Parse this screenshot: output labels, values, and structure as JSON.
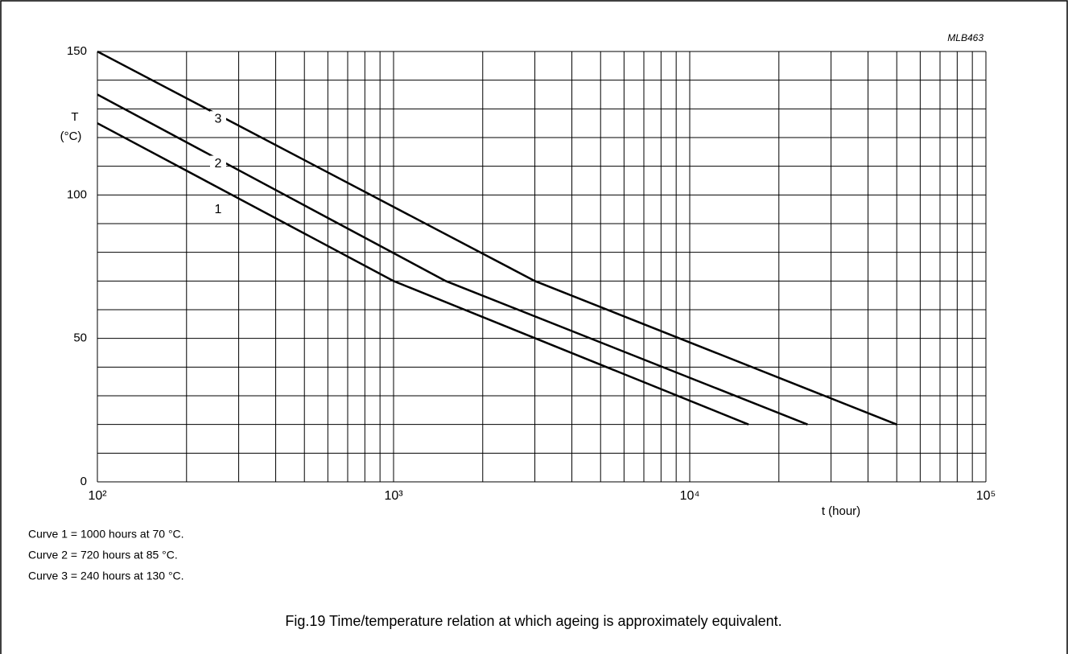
{
  "chart_data": {
    "type": "line",
    "code": "MLB463",
    "ylabel_symbol": "T",
    "ylabel_unit": "(°C)",
    "xlabel": "t (hour)",
    "xlog": true,
    "xlim": [
      100,
      100000
    ],
    "ylim": [
      0,
      150
    ],
    "xticks": [
      {
        "value": 100,
        "label": "10²"
      },
      {
        "value": 1000,
        "label": "10³"
      },
      {
        "value": 10000,
        "label": "10⁴"
      },
      {
        "value": 100000,
        "label": "10⁵"
      }
    ],
    "xgrid_minor": [
      200,
      300,
      400,
      500,
      600,
      700,
      800,
      900,
      2000,
      3000,
      4000,
      5000,
      6000,
      7000,
      8000,
      9000,
      20000,
      30000,
      40000,
      50000,
      60000,
      70000,
      80000,
      90000
    ],
    "yticks": [
      0,
      50,
      100,
      150
    ],
    "ygrid_minor": [
      10,
      20,
      30,
      40,
      60,
      70,
      80,
      90,
      110,
      120,
      130,
      140
    ],
    "series": [
      {
        "name": "1",
        "color": "#000000",
        "x": [
          100,
          1000,
          15800
        ],
        "values": [
          125,
          70,
          20
        ]
      },
      {
        "name": "2",
        "color": "#000000",
        "x": [
          100,
          1500,
          25000
        ],
        "values": [
          135,
          70,
          20
        ]
      },
      {
        "name": "3",
        "color": "#000000",
        "x": [
          100,
          3000,
          50000
        ],
        "values": [
          150,
          70,
          20
        ]
      }
    ],
    "notes": [
      "Curve 1 = 1000 hours at 70 °C.",
      "Curve 2 = 720 hours at 85 °C.",
      "Curve 3 = 240 hours at 130 °C."
    ],
    "caption": "Fig.19  Time/temperature relation at which ageing is approximately equivalent."
  }
}
